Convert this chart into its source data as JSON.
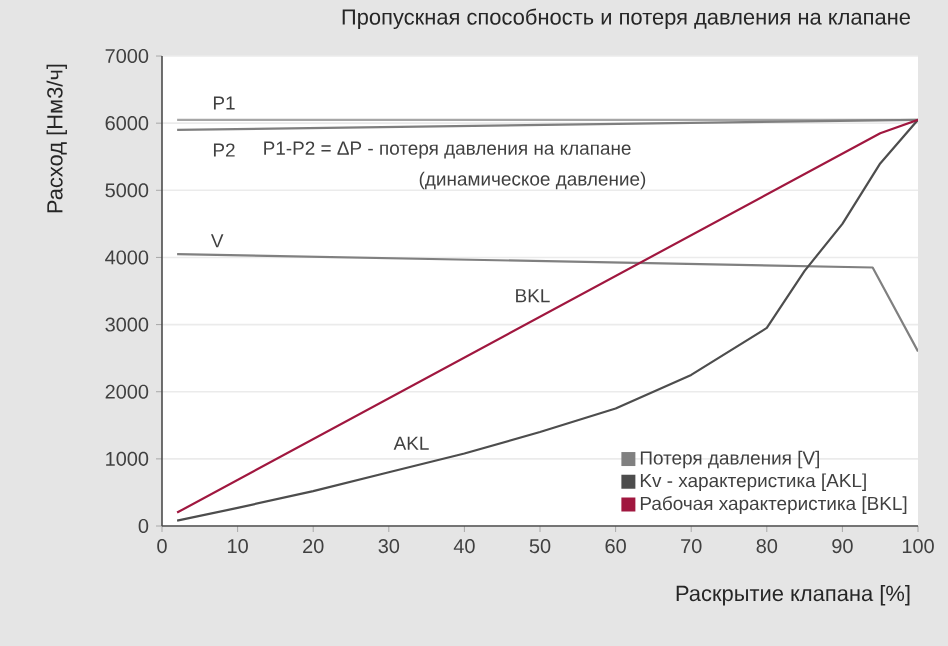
{
  "chart_data": {
    "type": "line",
    "title": "Пропускная способность и потеря давления на клапане",
    "xlabel": "Раскрытие клапана [%]",
    "ylabel": "Расход [Нм3/ч]",
    "xlim": [
      0,
      100
    ],
    "ylim": [
      0,
      7000
    ],
    "xticks": [
      0,
      10,
      20,
      30,
      40,
      50,
      60,
      70,
      80,
      90,
      100
    ],
    "yticks": [
      0,
      1000,
      2000,
      3000,
      4000,
      5000,
      6000,
      7000
    ],
    "grid": "y",
    "legend": "bottom right",
    "line_style": "solid",
    "series": [
      {
        "color": "#a6a6a6",
        "x": [
          2,
          100
        ],
        "values": [
          6050,
          6050
        ]
      },
      {
        "color": "#7f7f7f",
        "x": [
          2,
          100
        ],
        "values": [
          5900,
          6050
        ]
      },
      {
        "name": "Потеря давления [V]",
        "color": "#808080",
        "x": [
          2,
          94,
          100
        ],
        "values": [
          4050,
          3850,
          2600
        ]
      },
      {
        "name": "Kv - характеристика [AKL]",
        "color": "#4d4d4d",
        "x": [
          2,
          10,
          20,
          30,
          40,
          50,
          60,
          70,
          80,
          85,
          90,
          95,
          100
        ],
        "values": [
          80,
          270,
          520,
          800,
          1080,
          1400,
          1750,
          2250,
          2950,
          3800,
          4500,
          5400,
          6050
        ]
      },
      {
        "name": "Рабочая характеристика [BKL]",
        "color": "#a0173f",
        "x": [
          2,
          95,
          100
        ],
        "values": [
          200,
          5850,
          6050
        ]
      }
    ],
    "annotations": [
      "P1",
      "P2",
      "P1-P2 = ΔP - потеря давления на клапане",
      "(динамическое давление)",
      "V",
      "BKL",
      "AKL"
    ]
  }
}
